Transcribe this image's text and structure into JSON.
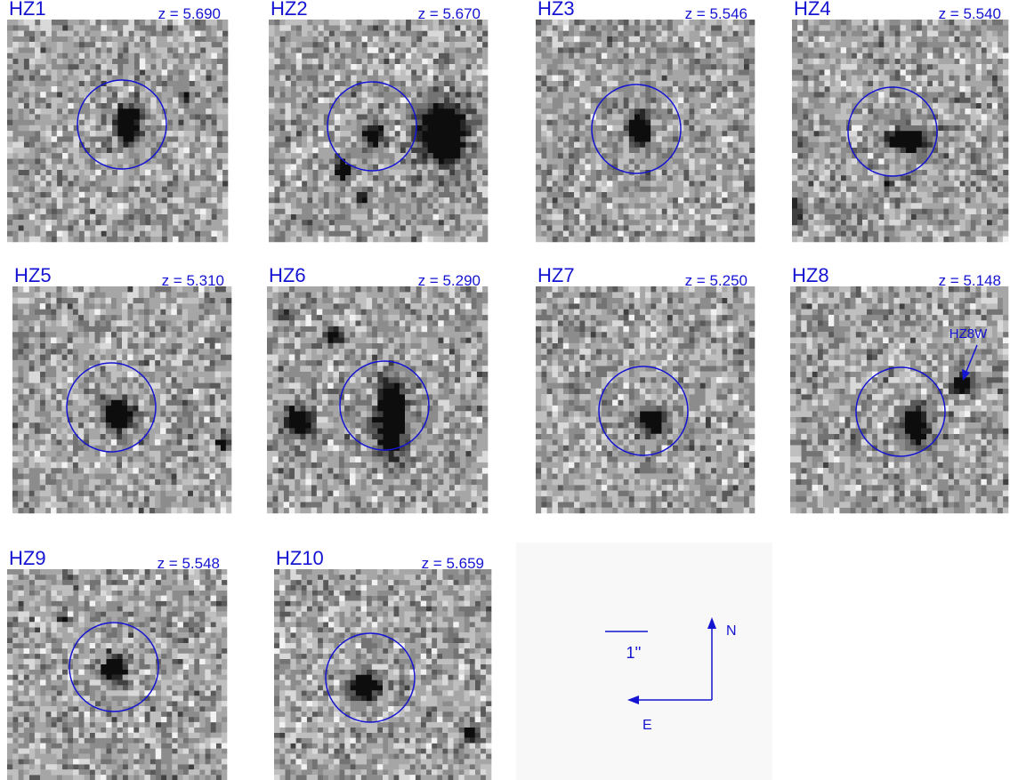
{
  "panels": [
    {
      "name": "HZ1",
      "redshift": "z = 5.690"
    },
    {
      "name": "HZ2",
      "redshift": "z = 5.670"
    },
    {
      "name": "HZ3",
      "redshift": "z = 5.546"
    },
    {
      "name": "HZ4",
      "redshift": "z = 5.540"
    },
    {
      "name": "HZ5",
      "redshift": "z = 5.310"
    },
    {
      "name": "HZ6",
      "redshift": "z = 5.290"
    },
    {
      "name": "HZ7",
      "redshift": "z = 5.250"
    },
    {
      "name": "HZ8",
      "redshift": "z = 5.148"
    },
    {
      "name": "HZ9",
      "redshift": "z = 5.548"
    },
    {
      "name": "HZ10",
      "redshift": "z = 5.659"
    }
  ],
  "annotation": "HZ8W",
  "scale_bar": "1''",
  "compass": {
    "north": "N",
    "east": "E"
  }
}
